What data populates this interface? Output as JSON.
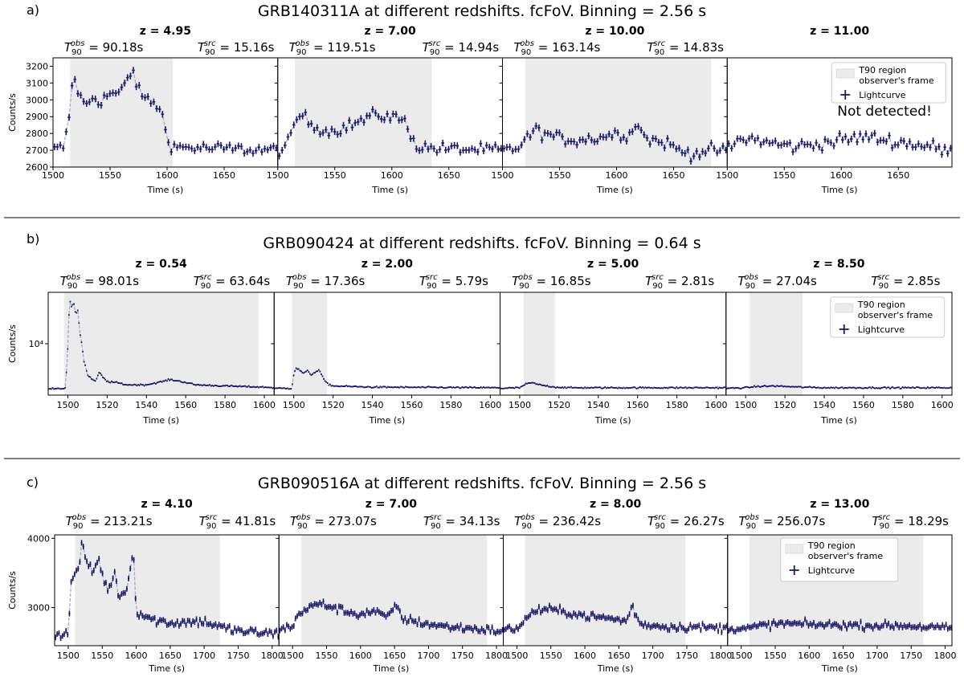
{
  "colors": {
    "lightcurve": "#1a1a66",
    "dash": "#a7a9c7",
    "t90_region": "#ebebeb",
    "frame": "#000000"
  },
  "rows": [
    {
      "letter": "a)",
      "title": "GRB140311A at different redshifts. fcFoV. Binning = 2.56 s",
      "ylabel": "Counts/s",
      "xlabel": "Time (s)",
      "scale": "linear",
      "ylim": [
        2600,
        3250
      ],
      "yticks": [
        2600,
        2700,
        2800,
        2900,
        3000,
        3100,
        3200
      ],
      "xlim": [
        1500,
        1697
      ],
      "xticks": [
        1500,
        1550,
        1600,
        1650
      ],
      "bin": 2.56
    },
    {
      "letter": "b)",
      "title": "GRB090424 at different redshifts. fcFoV. Binning = 0.64 s",
      "ylabel": "Counts/s",
      "xlabel": "Time (s)",
      "scale": "log",
      "ylim": [
        2500,
        40000
      ],
      "yticks": [
        10000
      ],
      "ytick_label": "10⁴",
      "xlim": [
        1490,
        1605
      ],
      "xticks": [
        1500,
        1520,
        1540,
        1560,
        1580,
        1600
      ],
      "bin": 0.64
    },
    {
      "letter": "c)",
      "title": "GRB090516A at different redshifts. fcFoV. Binning = 2.56 s",
      "ylabel": "Counts/s",
      "xlabel": "Time (s)",
      "scale": "linear",
      "ylim": [
        2450,
        4050
      ],
      "yticks": [
        3000,
        4000
      ],
      "xlim": [
        1480,
        1810
      ],
      "xticks": [
        1500,
        1550,
        1600,
        1650,
        1700,
        1750,
        1800
      ],
      "bin": 2.56
    }
  ],
  "chart_data": [
    {
      "type": "line",
      "title": "GRB140311A at different redshifts. fcFoV. Binning = 2.56 s",
      "xlabel": "Time (s)",
      "ylabel": "Counts/s",
      "panels": [
        {
          "z_label": "z = 4.95",
          "t_obs": "= 90.18s",
          "t_src": "= 15.16s",
          "t90_region": [
            1515,
            1605
          ],
          "x": [
            1500,
            1510,
            1514,
            1518,
            1522,
            1528,
            1535,
            1542,
            1550,
            1558,
            1565,
            1570,
            1575,
            1582,
            1590,
            1596,
            1600,
            1605,
            1640,
            1697
          ],
          "y": [
            2700,
            2720,
            2900,
            3160,
            3050,
            2960,
            3020,
            2990,
            3040,
            3030,
            3120,
            3180,
            3050,
            3000,
            2980,
            2900,
            2780,
            2720,
            2710,
            2700
          ],
          "noise": 35
        },
        {
          "z_label": "z = 7.00",
          "t_obs": "= 119.51s",
          "t_src": "= 14.94s",
          "t90_region": [
            1515,
            1635
          ],
          "x": [
            1500,
            1508,
            1515,
            1520,
            1530,
            1545,
            1560,
            1575,
            1585,
            1600,
            1610,
            1616,
            1622,
            1640,
            1697
          ],
          "y": [
            2700,
            2720,
            2860,
            2920,
            2850,
            2810,
            2840,
            2880,
            2910,
            2900,
            2880,
            2810,
            2720,
            2710,
            2700
          ],
          "noise": 35
        },
        {
          "z_label": "z = 10.00",
          "t_obs": "= 163.14s",
          "t_src": "= 14.83s",
          "t90_region": [
            1520,
            1683
          ],
          "x": [
            1500,
            1510,
            1520,
            1528,
            1545,
            1560,
            1580,
            1600,
            1612,
            1618,
            1625,
            1645,
            1655,
            1665,
            1683,
            1697
          ],
          "y": [
            2700,
            2700,
            2760,
            2820,
            2780,
            2760,
            2770,
            2800,
            2790,
            2880,
            2770,
            2740,
            2700,
            2680,
            2700,
            2700
          ],
          "noise": 35
        },
        {
          "z_label": "z = 11.00",
          "t_obs": "",
          "t_src": "",
          "note": "Not detected!",
          "t90_region": null,
          "x": [
            1500,
            1510,
            1520,
            1540,
            1560,
            1580,
            1600,
            1620,
            1640,
            1660,
            1680,
            1697
          ],
          "y": [
            2700,
            2760,
            2770,
            2740,
            2720,
            2740,
            2760,
            2780,
            2760,
            2740,
            2720,
            2680
          ],
          "noise": 38
        }
      ],
      "legend": [
        "T90 region observer's frame",
        "Lightcurve"
      ]
    },
    {
      "type": "line",
      "title": "GRB090424 at different redshifts. fcFoV. Binning = 0.64 s",
      "xlabel": "Time (s)",
      "ylabel": "Counts/s",
      "yscale": "log",
      "panels": [
        {
          "z_label": "z = 0.54",
          "t_obs": "= 98.01s",
          "t_src": "= 63.64s",
          "t90_region": [
            1498,
            1597
          ],
          "x": [
            1490,
            1499,
            1500,
            1501,
            1502,
            1503,
            1504,
            1505,
            1506,
            1508,
            1510,
            1512,
            1514,
            1516,
            1518,
            1520,
            1525,
            1530,
            1540,
            1548,
            1552,
            1558,
            1565,
            1580,
            1600,
            1605
          ],
          "y": [
            3000,
            3000,
            9000,
            32000,
            26000,
            30000,
            22000,
            25000,
            14000,
            6500,
            4300,
            3900,
            3600,
            4600,
            4000,
            3600,
            3500,
            3300,
            3300,
            3600,
            3800,
            3600,
            3300,
            3200,
            3100,
            3050
          ],
          "noise": 0.02
        },
        {
          "z_label": "z = 2.00",
          "t_obs": "= 17.36s",
          "t_src": "= 5.79s",
          "t90_region": [
            1499,
            1517
          ],
          "x": [
            1490,
            1499,
            1500,
            1501,
            1503,
            1505,
            1507,
            1509,
            1511,
            1513,
            1515,
            1517,
            1520,
            1540,
            1605
          ],
          "y": [
            3000,
            3000,
            4400,
            5200,
            4900,
            4500,
            4800,
            4300,
            4700,
            4900,
            3900,
            3400,
            3200,
            3100,
            3050
          ],
          "noise": 0.02
        },
        {
          "z_label": "z = 5.00",
          "t_obs": "= 16.85s",
          "t_src": "= 2.81s",
          "t90_region": [
            1502,
            1518
          ],
          "x": [
            1490,
            1500,
            1503,
            1506,
            1510,
            1514,
            1518,
            1525,
            1605
          ],
          "y": [
            3000,
            3050,
            3350,
            3500,
            3300,
            3200,
            3100,
            3050,
            3050
          ],
          "noise": 0.02
        },
        {
          "z_label": "z = 8.50",
          "t_obs": "= 27.04s",
          "t_src": "= 2.85s",
          "t90_region": [
            1502,
            1529
          ],
          "x": [
            1490,
            1500,
            1505,
            1515,
            1528,
            1540,
            1605
          ],
          "y": [
            3000,
            3050,
            3150,
            3200,
            3100,
            3050,
            3050
          ],
          "noise": 0.02
        }
      ],
      "legend": [
        "T90 region observer's frame",
        "Lightcurve"
      ]
    },
    {
      "type": "line",
      "title": "GRB090516A at different redshifts. fcFoV. Binning = 2.56 s",
      "xlabel": "Time (s)",
      "ylabel": "Counts/s",
      "panels": [
        {
          "z_label": "z = 4.10",
          "t_obs": "= 213.21s",
          "t_src": "= 41.81s",
          "t90_region": [
            1510,
            1723
          ],
          "x": [
            1480,
            1500,
            1505,
            1515,
            1520,
            1528,
            1535,
            1545,
            1552,
            1560,
            1568,
            1575,
            1585,
            1592,
            1596,
            1600,
            1610,
            1625,
            1650,
            1700,
            1730,
            1760,
            1810
          ],
          "y": [
            2620,
            2620,
            3450,
            3550,
            3900,
            3650,
            3500,
            3700,
            3400,
            3250,
            3500,
            3150,
            3250,
            3600,
            3800,
            2950,
            2900,
            2820,
            2780,
            2800,
            2700,
            2650,
            2620
          ],
          "noise": 65
        },
        {
          "z_label": "z = 7.00",
          "t_obs": "= 273.07s",
          "t_src": "= 34.13s",
          "t90_region": [
            1513,
            1786
          ],
          "x": [
            1480,
            1500,
            1510,
            1525,
            1540,
            1560,
            1580,
            1600,
            1620,
            1640,
            1652,
            1660,
            1680,
            1700,
            1730,
            1760,
            1786,
            1810
          ],
          "y": [
            2700,
            2720,
            2930,
            3000,
            3060,
            3000,
            2940,
            2900,
            2950,
            2850,
            3060,
            2850,
            2800,
            2760,
            2720,
            2700,
            2680,
            2650
          ],
          "noise": 55
        },
        {
          "z_label": "z = 8.00",
          "t_obs": "= 236.42s",
          "t_src": "= 26.27s",
          "t90_region": [
            1512,
            1748
          ],
          "x": [
            1480,
            1500,
            1512,
            1525,
            1545,
            1560,
            1580,
            1600,
            1620,
            1640,
            1660,
            1670,
            1680,
            1700,
            1730,
            1760,
            1810
          ],
          "y": [
            2680,
            2700,
            2820,
            2950,
            2980,
            2950,
            2920,
            2880,
            2860,
            2840,
            2800,
            3020,
            2770,
            2740,
            2720,
            2720,
            2700
          ],
          "noise": 55
        },
        {
          "z_label": "z = 13.00",
          "t_obs": "= 256.07s",
          "t_src": "= 18.29s",
          "t90_region": [
            1512,
            1768
          ],
          "x": [
            1480,
            1510,
            1530,
            1560,
            1590,
            1620,
            1650,
            1680,
            1710,
            1740,
            1770,
            1810
          ],
          "y": [
            2700,
            2700,
            2740,
            2770,
            2760,
            2750,
            2750,
            2740,
            2740,
            2740,
            2720,
            2700
          ],
          "noise": 50
        }
      ],
      "legend": [
        "T90 region observer's frame",
        "Lightcurve"
      ]
    }
  ]
}
